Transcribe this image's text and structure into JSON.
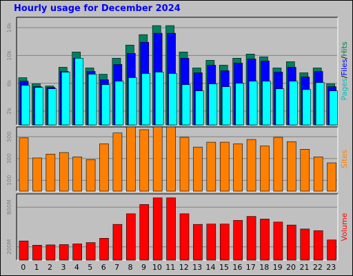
{
  "chart_data": {
    "type": "bar",
    "title": "Hourly usage for December 2024",
    "categories": [
      "0",
      "1",
      "2",
      "3",
      "4",
      "5",
      "6",
      "7",
      "8",
      "9",
      "10",
      "11",
      "12",
      "13",
      "14",
      "15",
      "16",
      "17",
      "18",
      "19",
      "20",
      "21",
      "22",
      "23"
    ],
    "grid": true,
    "panels": [
      {
        "ylabel": "Pages/Files/Hits",
        "ylabel_parts": [
          {
            "text": "Pages",
            "color": "#00c0c0"
          },
          {
            "text": "/",
            "color": "#000000"
          },
          {
            "text": "Files",
            "color": "#0000ff"
          },
          {
            "text": "/",
            "color": "#000000"
          },
          {
            "text": "Hits",
            "color": "#008040"
          }
        ],
        "ylim": [
          0,
          15500
        ],
        "ticks": [
          {
            "value": 2000,
            "label": "2k"
          },
          {
            "value": 6000,
            "label": "6k"
          },
          {
            "value": 10000,
            "label": "10k"
          },
          {
            "value": 14000,
            "label": "14k"
          }
        ],
        "series": [
          {
            "name": "Hits",
            "color": "#008060",
            "values": [
              6800,
              5900,
              5600,
              8300,
              10500,
              8200,
              7300,
              9600,
              11500,
              13000,
              14300,
              14300,
              10500,
              8200,
              9300,
              8600,
              9600,
              10200,
              9800,
              8200,
              9100,
              7500,
              8200,
              5900
            ]
          },
          {
            "name": "Files",
            "color": "#0000ff",
            "values": [
              6300,
              5500,
              5400,
              7700,
              9600,
              7700,
              6500,
              8700,
              10300,
              11900,
              13200,
              13200,
              9600,
              7500,
              8600,
              7800,
              8900,
              9500,
              9200,
              7600,
              8300,
              6900,
              7700,
              5500
            ]
          },
          {
            "name": "Pages",
            "color": "#00ffff",
            "values": [
              5700,
              5400,
              5200,
              7600,
              9600,
              7300,
              5800,
              6300,
              6800,
              7400,
              7600,
              7400,
              5800,
              4900,
              5900,
              5500,
              6000,
              6300,
              6300,
              5200,
              6300,
              5100,
              6100,
              4900
            ]
          }
        ]
      },
      {
        "ylabel": "Sites",
        "ylabel_color": "#ff8000",
        "ylim": [
          0,
          590
        ],
        "ticks": [
          {
            "value": 100,
            "label": "100"
          },
          {
            "value": 300,
            "label": "300"
          },
          {
            "value": 500,
            "label": "500"
          }
        ],
        "series": [
          {
            "name": "Sites",
            "color": "#ff8000",
            "values": [
              490,
              305,
              340,
              355,
              315,
              290,
              435,
              535,
              590,
              565,
              590,
              590,
              495,
              405,
              450,
              450,
              435,
              475,
              415,
              495,
              455,
              385,
              315,
              260
            ]
          }
        ]
      },
      {
        "ylabel": "Volume",
        "ylabel_color": "#ff0000",
        "ylim": [
          0,
          1000
        ],
        "ticks": [
          {
            "value": 200,
            "label": "200M"
          },
          {
            "value": 800,
            "label": "800M"
          }
        ],
        "series": [
          {
            "name": "Volume",
            "color": "#ff0000",
            "values": [
              290,
              225,
              230,
              235,
              245,
              265,
              330,
              540,
              700,
              840,
              940,
              940,
              700,
              540,
              545,
              545,
              600,
              660,
              620,
              575,
              530,
              470,
              445,
              305
            ]
          }
        ]
      }
    ]
  }
}
